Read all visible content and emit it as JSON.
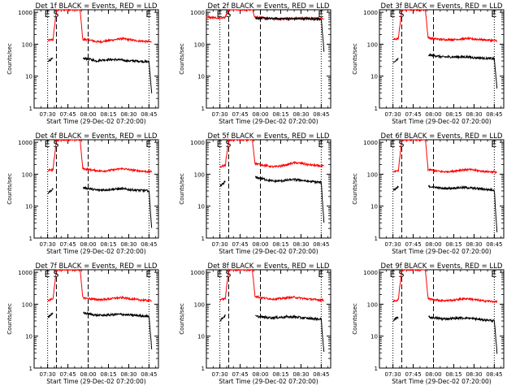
{
  "figure": {
    "xlabel": "Start Time (29-Dec-02 07:20:00)",
    "ylabel": "Counts/sec",
    "x_ticks": [
      {
        "t": 10,
        "label": "07:30"
      },
      {
        "t": 25,
        "label": "07:45"
      },
      {
        "t": 40,
        "label": "08:00"
      },
      {
        "t": 55,
        "label": "08:15"
      },
      {
        "t": 70,
        "label": "08:30"
      },
      {
        "t": 85,
        "label": "08:45"
      }
    ],
    "y_ticks": [
      {
        "v": 1,
        "label": "1"
      },
      {
        "v": 10,
        "label": "10"
      },
      {
        "v": 100,
        "label": "100"
      },
      {
        "v": 1000,
        "label": "1000"
      }
    ],
    "markers": [
      {
        "t": 10,
        "label": "E",
        "style": "dotted"
      },
      {
        "t": 16.5,
        "label": "S",
        "style": "dashed"
      },
      {
        "t": 40,
        "label": "",
        "style": "dashed"
      },
      {
        "t": 85,
        "label": "E",
        "style": "dotted"
      }
    ],
    "series_colors": {
      "events": "#000000",
      "lld": "#ff0000"
    },
    "xlim_minutes": [
      0,
      92
    ],
    "ylim": [
      1,
      1200
    ]
  },
  "chart_data": [
    {
      "type": "line",
      "title": "Det 1f BLACK = Events, RED = LLD",
      "panel": 1,
      "lld_base": 120,
      "events_base": 30,
      "x": [
        0,
        10,
        14,
        16.5,
        34,
        36,
        40,
        46,
        50,
        55,
        60,
        65,
        70,
        75,
        80,
        85,
        87,
        90
      ],
      "series": [
        {
          "name": "LLD",
          "color": "#ff0000",
          "values": [
            null,
            130,
            140,
            1200,
            1200,
            140,
            140,
            120,
            120,
            130,
            140,
            150,
            140,
            130,
            125,
            120,
            115,
            null
          ]
        },
        {
          "name": "Events",
          "color": "#000000",
          "values": [
            null,
            30,
            35,
            null,
            null,
            35,
            35,
            30,
            32,
            33,
            33,
            32,
            30,
            30,
            29,
            28,
            3,
            null
          ]
        }
      ]
    },
    {
      "type": "line",
      "title": "Det 2f BLACK = Events, RED = LLD",
      "panel": 2,
      "lld_base": 650,
      "events_base": 600,
      "x": [
        0,
        10,
        14,
        16.5,
        34,
        36,
        40,
        46,
        50,
        55,
        60,
        65,
        70,
        75,
        80,
        85,
        87,
        90
      ],
      "series": [
        {
          "name": "LLD",
          "color": "#ff0000",
          "values": [
            700,
            650,
            700,
            1200,
            1200,
            700,
            680,
            650,
            640,
            630,
            640,
            640,
            650,
            650,
            650,
            650,
            650,
            null
          ]
        },
        {
          "name": "Events",
          "color": "#000000",
          "values": [
            null,
            null,
            null,
            null,
            null,
            650,
            650,
            640,
            630,
            630,
            630,
            630,
            630,
            630,
            620,
            620,
            60,
            null
          ]
        }
      ]
    },
    {
      "type": "line",
      "title": "Det 3f BLACK = Events, RED = LLD",
      "panel": 3,
      "lld_base": 140,
      "events_base": 40,
      "x": [
        0,
        10,
        14,
        16.5,
        34,
        36,
        40,
        46,
        50,
        55,
        60,
        65,
        70,
        75,
        80,
        85,
        87,
        90
      ],
      "series": [
        {
          "name": "LLD",
          "color": "#ff0000",
          "values": [
            null,
            140,
            150,
            1200,
            1200,
            160,
            150,
            140,
            140,
            140,
            145,
            150,
            145,
            140,
            135,
            130,
            130,
            null
          ]
        },
        {
          "name": "Events",
          "color": "#000000",
          "values": [
            null,
            25,
            35,
            null,
            null,
            45,
            45,
            40,
            40,
            40,
            40,
            40,
            38,
            37,
            36,
            35,
            4,
            null
          ]
        }
      ]
    },
    {
      "type": "line",
      "title": "Det 4f BLACK = Events, RED = LLD",
      "panel": 4,
      "lld_base": 130,
      "events_base": 30,
      "x": [
        0,
        10,
        14,
        16.5,
        34,
        36,
        40,
        46,
        50,
        55,
        60,
        65,
        70,
        75,
        80,
        85,
        87,
        90
      ],
      "series": [
        {
          "name": "LLD",
          "color": "#ff0000",
          "values": [
            null,
            130,
            140,
            1200,
            1200,
            150,
            140,
            130,
            125,
            130,
            140,
            150,
            140,
            130,
            125,
            120,
            120,
            null
          ]
        },
        {
          "name": "Events",
          "color": "#000000",
          "values": [
            null,
            25,
            35,
            null,
            null,
            38,
            36,
            32,
            32,
            33,
            34,
            35,
            33,
            32,
            31,
            30,
            2,
            null
          ]
        }
      ]
    },
    {
      "type": "line",
      "title": "Det 5f BLACK = Events, RED = LLD",
      "panel": 5,
      "lld_base": 160,
      "events_base": 50,
      "x": [
        0,
        10,
        14,
        16.5,
        34,
        36,
        40,
        46,
        50,
        55,
        60,
        65,
        70,
        75,
        80,
        85,
        87,
        90
      ],
      "series": [
        {
          "name": "LLD",
          "color": "#ff0000",
          "values": [
            null,
            170,
            190,
            1200,
            1200,
            220,
            200,
            180,
            170,
            180,
            200,
            230,
            220,
            200,
            190,
            180,
            180,
            null
          ]
        },
        {
          "name": "Events",
          "color": "#000000",
          "values": [
            null,
            40,
            60,
            null,
            null,
            80,
            75,
            65,
            60,
            62,
            65,
            68,
            65,
            60,
            58,
            55,
            3,
            null
          ]
        }
      ]
    },
    {
      "type": "line",
      "title": "Det 6f BLACK = Events, RED = LLD",
      "panel": 6,
      "lld_base": 120,
      "events_base": 35,
      "x": [
        0,
        10,
        14,
        16.5,
        34,
        36,
        40,
        46,
        50,
        55,
        60,
        65,
        70,
        75,
        80,
        85,
        87,
        90
      ],
      "series": [
        {
          "name": "LLD",
          "color": "#ff0000",
          "values": [
            null,
            120,
            130,
            1200,
            1200,
            140,
            130,
            120,
            120,
            125,
            135,
            140,
            135,
            125,
            120,
            118,
            115,
            null
          ]
        },
        {
          "name": "Events",
          "color": "#000000",
          "values": [
            null,
            30,
            40,
            null,
            null,
            42,
            40,
            36,
            36,
            37,
            38,
            38,
            36,
            35,
            33,
            32,
            1.5,
            null
          ]
        }
      ]
    },
    {
      "type": "line",
      "title": "Det 7f BLACK = Events, RED = LLD",
      "panel": 7,
      "lld_base": 140,
      "events_base": 45,
      "x": [
        0,
        10,
        14,
        16.5,
        34,
        36,
        40,
        46,
        50,
        55,
        60,
        65,
        70,
        75,
        80,
        85,
        87,
        90
      ],
      "series": [
        {
          "name": "LLD",
          "color": "#ff0000",
          "values": [
            null,
            130,
            150,
            1200,
            1200,
            160,
            150,
            140,
            140,
            145,
            155,
            160,
            150,
            140,
            135,
            130,
            130,
            null
          ]
        },
        {
          "name": "Events",
          "color": "#000000",
          "values": [
            null,
            40,
            50,
            null,
            null,
            55,
            50,
            45,
            45,
            46,
            48,
            48,
            46,
            45,
            43,
            42,
            4,
            null
          ]
        }
      ]
    },
    {
      "type": "line",
      "title": "Det 8f BLACK = Events, RED = LLD",
      "panel": 8,
      "lld_base": 140,
      "events_base": 40,
      "x": [
        0,
        10,
        14,
        16.5,
        34,
        36,
        40,
        46,
        50,
        55,
        60,
        65,
        70,
        75,
        80,
        85,
        87,
        90
      ],
      "series": [
        {
          "name": "LLD",
          "color": "#ff0000",
          "values": [
            null,
            140,
            150,
            1200,
            1200,
            180,
            160,
            150,
            145,
            150,
            160,
            165,
            155,
            145,
            140,
            135,
            135,
            null
          ]
        },
        {
          "name": "Events",
          "color": "#000000",
          "values": [
            null,
            30,
            45,
            null,
            null,
            42,
            40,
            38,
            38,
            39,
            40,
            40,
            38,
            36,
            35,
            34,
            3,
            null
          ]
        }
      ]
    },
    {
      "type": "line",
      "title": "Det 9f BLACK = Events, RED = LLD",
      "panel": 9,
      "lld_base": 130,
      "events_base": 35,
      "x": [
        0,
        10,
        14,
        16.5,
        34,
        36,
        40,
        46,
        50,
        55,
        60,
        65,
        70,
        75,
        80,
        85,
        87,
        90
      ],
      "series": [
        {
          "name": "LLD",
          "color": "#ff0000",
          "values": [
            null,
            120,
            140,
            1200,
            1200,
            150,
            140,
            130,
            130,
            135,
            145,
            150,
            140,
            130,
            125,
            120,
            120,
            null
          ]
        },
        {
          "name": "Events",
          "color": "#000000",
          "values": [
            null,
            30,
            40,
            null,
            null,
            40,
            38,
            35,
            35,
            36,
            37,
            37,
            35,
            33,
            32,
            30,
            3,
            null
          ]
        }
      ]
    }
  ]
}
